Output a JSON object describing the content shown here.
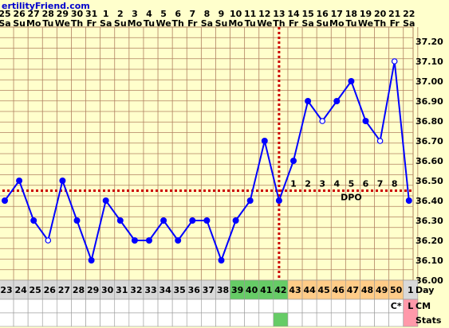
{
  "header": {
    "site": "ertilityFriend.com"
  },
  "chart_data": {
    "type": "line",
    "dates": [
      "25",
      "26",
      "27",
      "28",
      "29",
      "30",
      "31",
      "1",
      "2",
      "3",
      "4",
      "5",
      "6",
      "7",
      "8",
      "9",
      "10",
      "11",
      "12",
      "13",
      "14",
      "15",
      "16",
      "17",
      "18",
      "19",
      "20",
      "21",
      "22"
    ],
    "weekdays": [
      "Sa",
      "Su",
      "Mo",
      "Tu",
      "We",
      "Th",
      "Fr",
      "Sa",
      "Su",
      "Mo",
      "Tu",
      "We",
      "Th",
      "Fr",
      "Sa",
      "Su",
      "Mo",
      "Tu",
      "We",
      "Th",
      "Fr",
      "Sa",
      "Su",
      "Mo",
      "Tu",
      "We",
      "Th",
      "Fr",
      "Sa"
    ],
    "cycle_days": [
      "23",
      "24",
      "25",
      "26",
      "27",
      "28",
      "29",
      "30",
      "31",
      "32",
      "33",
      "34",
      "35",
      "36",
      "37",
      "38",
      "39",
      "40",
      "41",
      "42",
      "43",
      "44",
      "45",
      "46",
      "47",
      "48",
      "49",
      "50",
      "1"
    ],
    "temperatures": [
      36.4,
      36.5,
      36.3,
      36.2,
      36.5,
      36.3,
      36.1,
      36.4,
      36.3,
      36.2,
      36.2,
      36.3,
      36.2,
      36.3,
      36.3,
      36.1,
      36.3,
      36.4,
      36.7,
      36.4,
      36.6,
      36.9,
      36.8,
      36.9,
      37.0,
      36.8,
      36.7,
      37.1,
      36.4
    ],
    "open_points": [
      3,
      22,
      26,
      27
    ],
    "y_ticks": [
      "37.20",
      "37.10",
      "37.00",
      "36.90",
      "36.80",
      "36.70",
      "36.60",
      "36.50",
      "36.40",
      "36.30",
      "36.20",
      "36.10",
      "36.00"
    ],
    "ylim": [
      36.0,
      37.2
    ],
    "coverline": 36.45,
    "ovulation_date_index": 19,
    "dpo_labels": [
      "1",
      "2",
      "3",
      "4",
      "5",
      "6",
      "7",
      "8"
    ],
    "dpo_text": "DPO",
    "row_labels": {
      "day": "Day",
      "cm": "CM",
      "stats": "Stats"
    },
    "cm_marks": [
      {
        "index": 27,
        "text": "C*"
      },
      {
        "index": 28,
        "text": "L"
      }
    ],
    "colors": {
      "line": "#0000ff",
      "coverline": "#cc0000",
      "grid": "#b08060",
      "green": "#66cc66",
      "orange": "#ffcc88",
      "gray": "#d9d9d9",
      "pink": "#ff99aa"
    }
  }
}
